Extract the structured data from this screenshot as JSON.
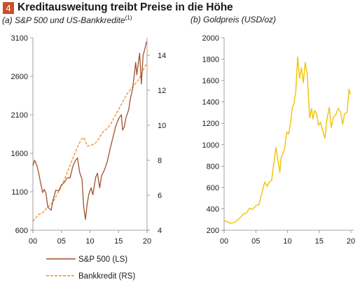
{
  "header": {
    "number": "4",
    "title": "Kreditausweitung treibt Preise in die Höhe"
  },
  "colors": {
    "badge": "#c8502a",
    "sp500": "#a0522d",
    "credit": "#e8902c",
    "gold": "#f2c200",
    "axis": "#888888"
  },
  "chart_data": [
    {
      "type": "line",
      "subtitle": "(a) S&P 500 und US-Bankkredite",
      "subtitle_sup": "(1)",
      "x_ticks": [
        "00",
        "05",
        "10",
        "15",
        "20"
      ],
      "x_range": [
        2000,
        2020
      ],
      "y_left": {
        "range": [
          600,
          3100
        ],
        "ticks": [
          "600",
          "1100",
          "1600",
          "2100",
          "2600",
          "3100"
        ]
      },
      "y_right": {
        "range": [
          4,
          15
        ],
        "ticks": [
          "4",
          "6",
          "8",
          "10",
          "12",
          "14"
        ]
      },
      "legend": {
        "placement": "bottom"
      },
      "series": [
        {
          "name": "S&P 500 (LS)",
          "axis": "left",
          "style": "solid",
          "points": [
            [
              2000.0,
              1440
            ],
            [
              2000.3,
              1510
            ],
            [
              2000.7,
              1440
            ],
            [
              2001.0,
              1350
            ],
            [
              2001.3,
              1230
            ],
            [
              2001.7,
              1090
            ],
            [
              2002.0,
              1130
            ],
            [
              2002.3,
              1080
            ],
            [
              2002.6,
              900
            ],
            [
              2002.9,
              880
            ],
            [
              2003.2,
              860
            ],
            [
              2003.5,
              980
            ],
            [
              2004.0,
              1120
            ],
            [
              2004.5,
              1110
            ],
            [
              2005.0,
              1190
            ],
            [
              2005.5,
              1220
            ],
            [
              2006.0,
              1280
            ],
            [
              2006.5,
              1280
            ],
            [
              2007.0,
              1430
            ],
            [
              2007.4,
              1500
            ],
            [
              2007.8,
              1540
            ],
            [
              2008.2,
              1350
            ],
            [
              2008.6,
              1260
            ],
            [
              2008.9,
              900
            ],
            [
              2009.2,
              740
            ],
            [
              2009.5,
              940
            ],
            [
              2009.8,
              1070
            ],
            [
              2010.2,
              1150
            ],
            [
              2010.5,
              1060
            ],
            [
              2011.0,
              1290
            ],
            [
              2011.3,
              1340
            ],
            [
              2011.7,
              1150
            ],
            [
              2012.0,
              1300
            ],
            [
              2012.5,
              1380
            ],
            [
              2013.0,
              1480
            ],
            [
              2013.5,
              1650
            ],
            [
              2014.0,
              1800
            ],
            [
              2014.5,
              1950
            ],
            [
              2015.0,
              2050
            ],
            [
              2015.5,
              2100
            ],
            [
              2015.7,
              1900
            ],
            [
              2016.0,
              1940
            ],
            [
              2016.3,
              2060
            ],
            [
              2016.8,
              2170
            ],
            [
              2017.0,
              2280
            ],
            [
              2017.5,
              2450
            ],
            [
              2018.0,
              2780
            ],
            [
              2018.2,
              2620
            ],
            [
              2018.7,
              2900
            ],
            [
              2019.0,
              2500
            ],
            [
              2019.3,
              2870
            ],
            [
              2019.6,
              2950
            ],
            [
              2019.9,
              3050
            ]
          ]
        },
        {
          "name": "Bankkredit (RS)",
          "axis": "right",
          "style": "dashed",
          "points": [
            [
              2000.0,
              4.5
            ],
            [
              2000.5,
              4.7
            ],
            [
              2001.0,
              4.9
            ],
            [
              2001.5,
              4.95
            ],
            [
              2002.0,
              5.1
            ],
            [
              2002.5,
              5.3
            ],
            [
              2003.0,
              5.45
            ],
            [
              2003.5,
              5.6
            ],
            [
              2004.0,
              5.9
            ],
            [
              2004.5,
              6.2
            ],
            [
              2005.0,
              6.5
            ],
            [
              2005.5,
              6.9
            ],
            [
              2006.0,
              7.3
            ],
            [
              2006.5,
              7.7
            ],
            [
              2007.0,
              8.1
            ],
            [
              2007.5,
              8.5
            ],
            [
              2008.0,
              8.9
            ],
            [
              2008.5,
              9.2
            ],
            [
              2008.9,
              9.3
            ],
            [
              2009.3,
              9.0
            ],
            [
              2009.6,
              8.8
            ],
            [
              2010.0,
              8.85
            ],
            [
              2010.5,
              8.9
            ],
            [
              2011.0,
              9.0
            ],
            [
              2011.5,
              9.2
            ],
            [
              2012.0,
              9.5
            ],
            [
              2012.5,
              9.7
            ],
            [
              2013.0,
              9.8
            ],
            [
              2013.5,
              10.0
            ],
            [
              2014.0,
              10.3
            ],
            [
              2014.5,
              10.6
            ],
            [
              2015.0,
              10.9
            ],
            [
              2015.5,
              11.2
            ],
            [
              2016.0,
              11.5
            ],
            [
              2016.5,
              11.8
            ],
            [
              2017.0,
              12.0
            ],
            [
              2017.5,
              12.2
            ],
            [
              2018.0,
              12.4
            ],
            [
              2018.5,
              12.6
            ],
            [
              2019.0,
              12.9
            ],
            [
              2019.5,
              13.3
            ],
            [
              2019.9,
              13.5
            ]
          ]
        }
      ]
    },
    {
      "type": "line",
      "subtitle": "(b) Goldpreis (USD/oz)",
      "x_ticks": [
        "00",
        "05",
        "10",
        "15",
        "20"
      ],
      "x_range": [
        2000,
        2020
      ],
      "y_left": {
        "range": [
          200,
          2000
        ],
        "ticks": [
          "200",
          "400",
          "600",
          "800",
          "1000",
          "1200",
          "1400",
          "1600",
          "1800",
          "2000"
        ]
      },
      "series": [
        {
          "axis": "left",
          "style": "solid",
          "points": [
            [
              2000.0,
              290
            ],
            [
              2000.5,
              280
            ],
            [
              2001.0,
              265
            ],
            [
              2001.5,
              270
            ],
            [
              2002.0,
              290
            ],
            [
              2002.5,
              315
            ],
            [
              2003.0,
              350
            ],
            [
              2003.5,
              360
            ],
            [
              2004.0,
              405
            ],
            [
              2004.5,
              395
            ],
            [
              2005.0,
              430
            ],
            [
              2005.5,
              440
            ],
            [
              2006.0,
              560
            ],
            [
              2006.4,
              650
            ],
            [
              2006.8,
              610
            ],
            [
              2007.0,
              640
            ],
            [
              2007.5,
              670
            ],
            [
              2008.0,
              900
            ],
            [
              2008.2,
              975
            ],
            [
              2008.5,
              850
            ],
            [
              2008.8,
              740
            ],
            [
              2009.0,
              880
            ],
            [
              2009.5,
              950
            ],
            [
              2009.9,
              1120
            ],
            [
              2010.2,
              1100
            ],
            [
              2010.5,
              1220
            ],
            [
              2010.8,
              1360
            ],
            [
              2011.0,
              1380
            ],
            [
              2011.3,
              1500
            ],
            [
              2011.6,
              1820
            ],
            [
              2011.9,
              1620
            ],
            [
              2012.2,
              1720
            ],
            [
              2012.5,
              1580
            ],
            [
              2012.8,
              1770
            ],
            [
              2013.1,
              1660
            ],
            [
              2013.5,
              1250
            ],
            [
              2013.8,
              1340
            ],
            [
              2014.0,
              1240
            ],
            [
              2014.3,
              1320
            ],
            [
              2014.6,
              1290
            ],
            [
              2014.9,
              1180
            ],
            [
              2015.2,
              1210
            ],
            [
              2015.6,
              1120
            ],
            [
              2015.9,
              1060
            ],
            [
              2016.2,
              1230
            ],
            [
              2016.6,
              1350
            ],
            [
              2016.9,
              1160
            ],
            [
              2017.2,
              1250
            ],
            [
              2017.6,
              1280
            ],
            [
              2018.0,
              1340
            ],
            [
              2018.4,
              1300
            ],
            [
              2018.7,
              1190
            ],
            [
              2019.0,
              1290
            ],
            [
              2019.4,
              1300
            ],
            [
              2019.7,
              1520
            ],
            [
              2019.9,
              1470
            ]
          ]
        }
      ]
    }
  ]
}
